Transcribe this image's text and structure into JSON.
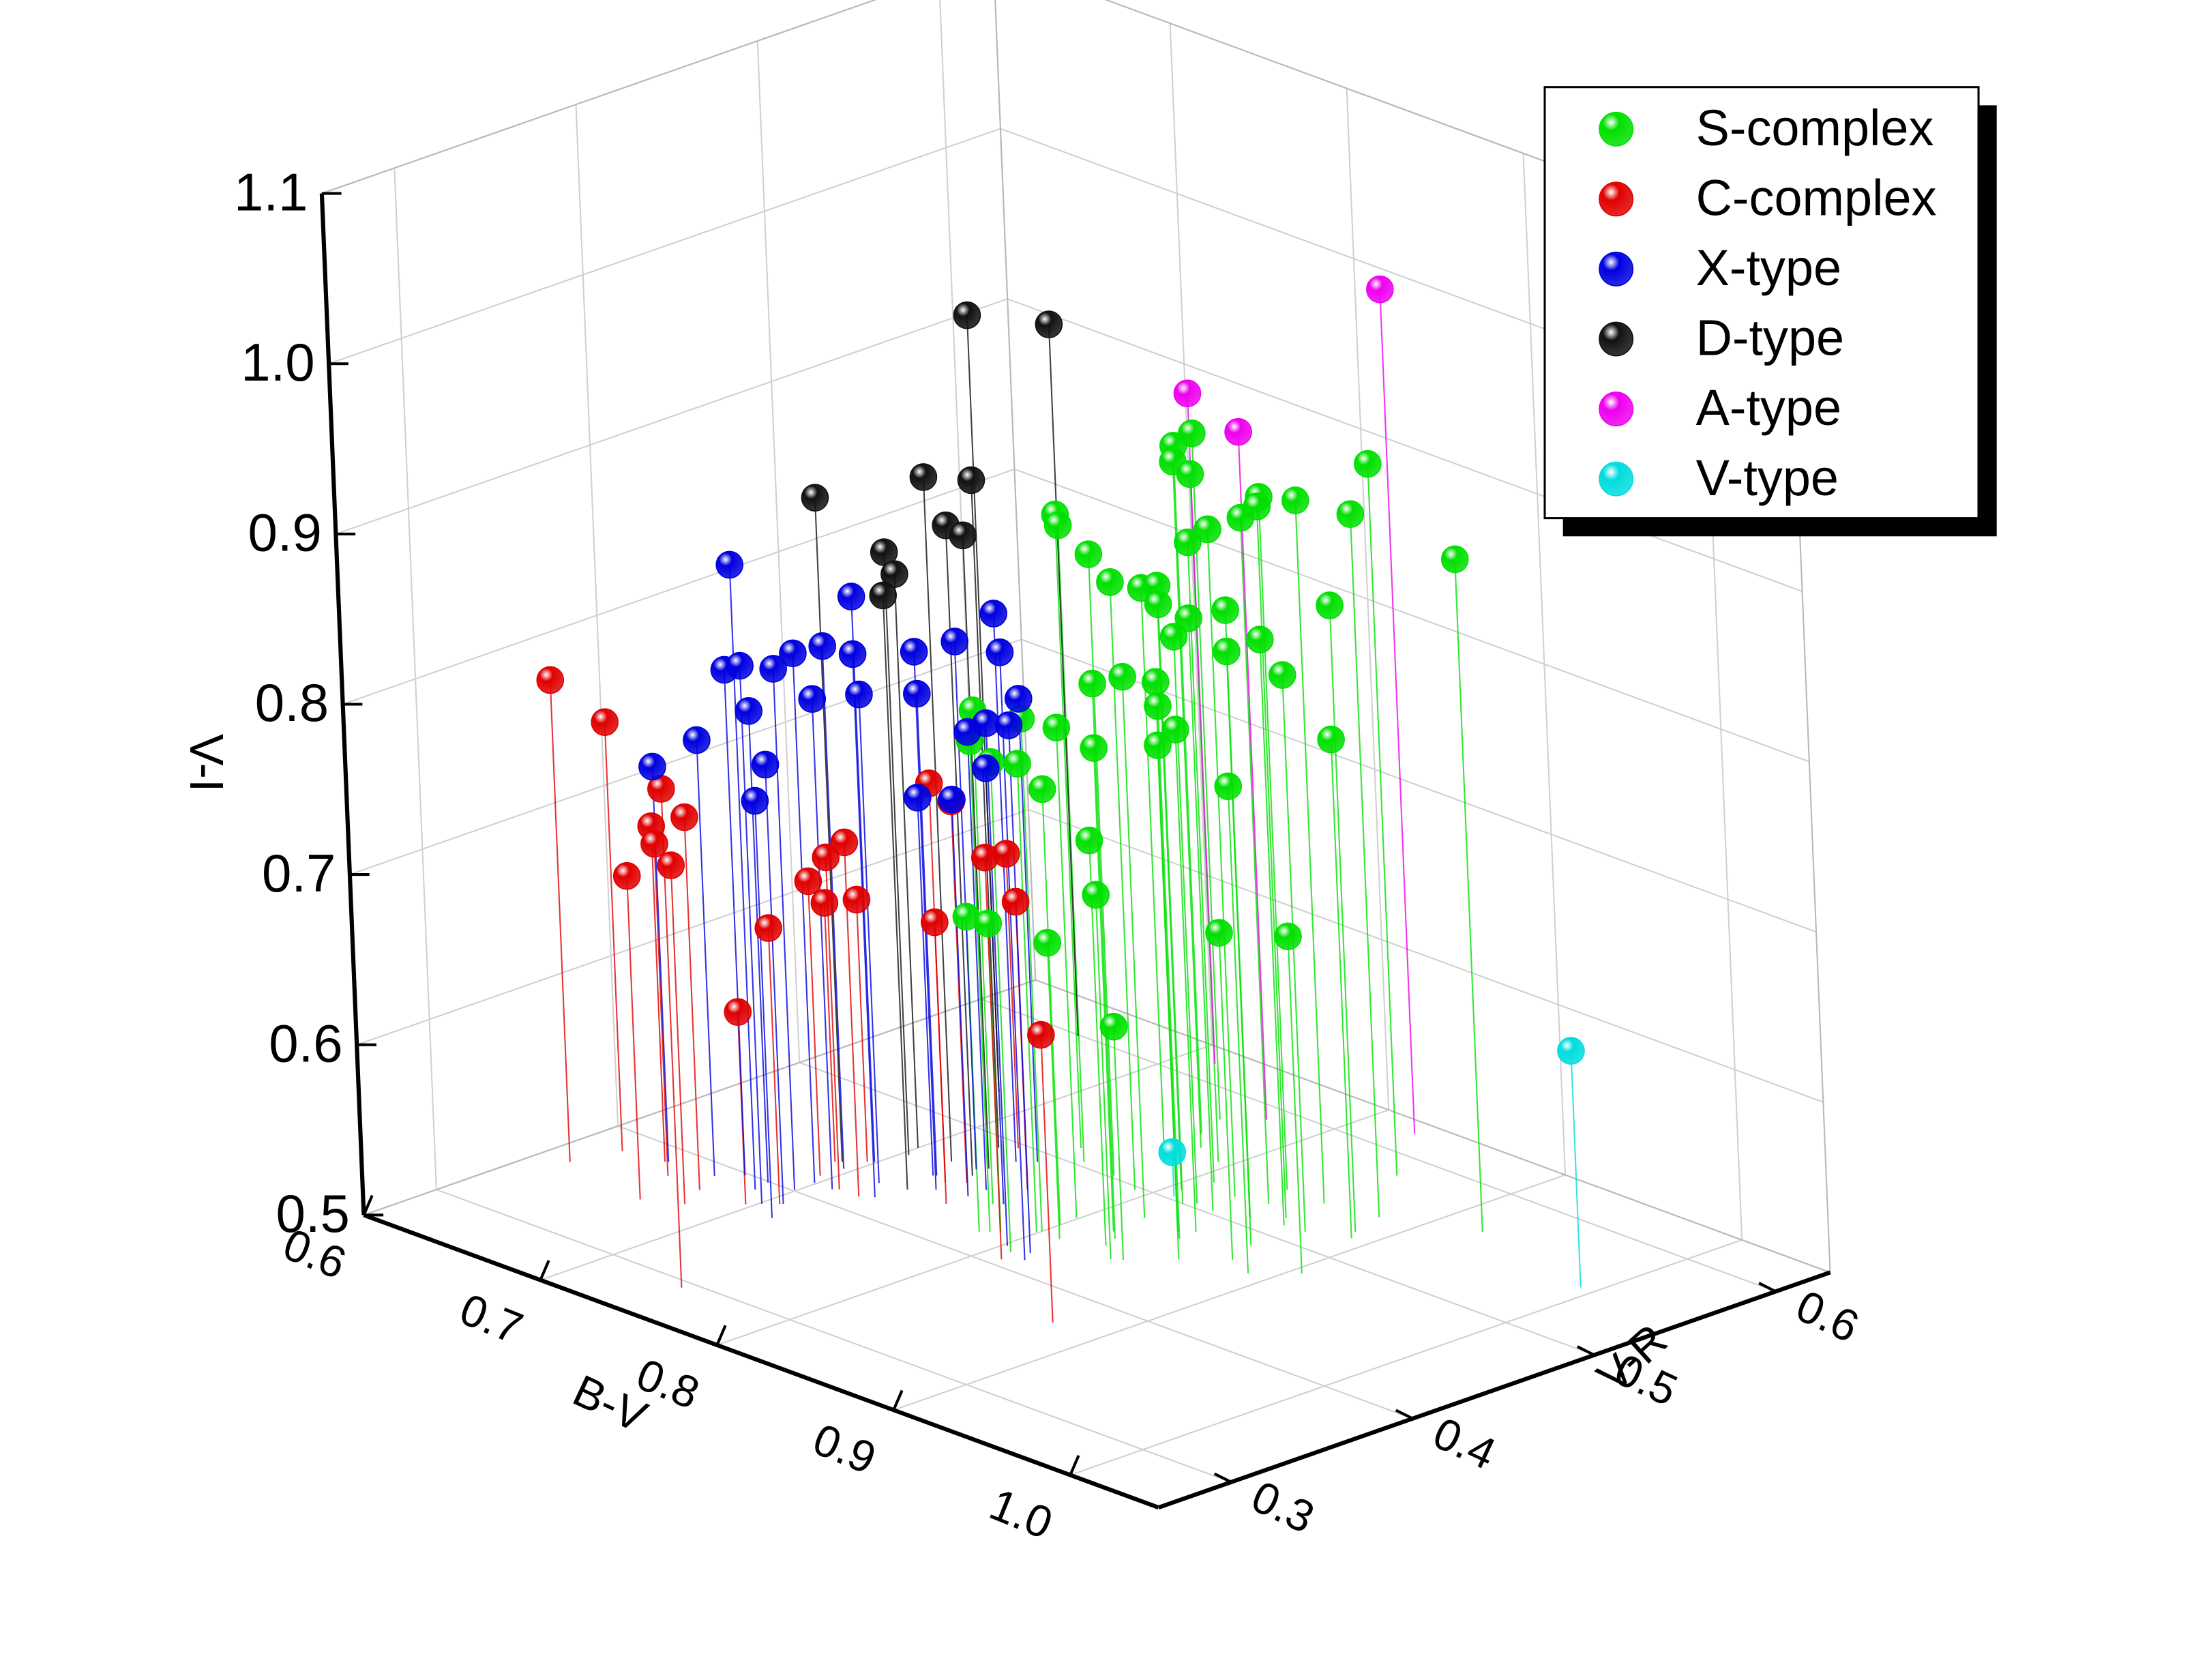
{
  "chart_data": {
    "type": "scatter3d",
    "xlabel": "B-V",
    "ylabel": "V-R",
    "zlabel": "V-I",
    "xlim": [
      0.6,
      1.05
    ],
    "ylim": [
      0.26,
      0.63
    ],
    "zlim": [
      0.5,
      1.1
    ],
    "xticks": [
      0.6,
      0.7,
      0.8,
      0.9,
      {
        "value": 1,
        "label": "1.0"
      }
    ],
    "yticks": [
      0.3,
      0.4,
      0.5,
      0.6
    ],
    "zticks": [
      0.5,
      0.6,
      0.7,
      0.8,
      0.9,
      {
        "value": 1,
        "label": "1.0"
      },
      1.1
    ],
    "grid": true,
    "legend": "upper right",
    "series": [
      {
        "name": "S-complex",
        "color": "#00e000",
        "x": [
          0.745,
          0.757,
          0.776,
          0.793,
          0.779,
          0.806,
          0.817,
          0.767,
          0.761,
          0.778,
          0.794,
          0.809,
          0.826,
          0.841,
          0.835,
          0.857,
          0.856,
          0.882,
          0.854,
          0.922,
          0.887,
          0.847,
          0.831,
          0.821,
          0.862,
          0.869,
          0.873,
          0.818,
          0.838,
          0.826,
          0.844,
          0.843,
          0.86,
          0.891,
          0.799,
          0.82,
          0.8,
          0.765,
          0.786,
          0.808,
          0.799,
          0.8,
          0.89,
          0.829,
          0.841,
          0.783,
          0.789,
          0.811,
          0.875,
          0.905,
          0.845
        ],
        "y": [
          0.514,
          0.504,
          0.502,
          0.497,
          0.527,
          0.51,
          0.5,
          0.559,
          0.575,
          0.548,
          0.542,
          0.525,
          0.52,
          0.524,
          0.54,
          0.518,
          0.54,
          0.545,
          0.582,
          0.563,
          0.527,
          0.508,
          0.503,
          0.504,
          0.512,
          0.487,
          0.513,
          0.478,
          0.477,
          0.454,
          0.472,
          0.482,
          0.456,
          0.521,
          0.459,
          0.459,
          0.439,
          0.446,
          0.424,
          0.414,
          0.437,
          0.449,
          0.465,
          0.446,
          0.437,
          0.421,
          0.427,
          0.438,
          0.471,
          0.48,
          0.44
        ],
        "z": [
          0.872,
          0.874,
          0.865,
          0.857,
          0.837,
          0.855,
          0.852,
          0.904,
          0.903,
          0.903,
          0.904,
          0.876,
          0.892,
          0.903,
          0.907,
          0.918,
          0.913,
          0.913,
          0.918,
          0.895,
          0.868,
          0.857,
          0.848,
          0.833,
          0.844,
          0.849,
          0.827,
          0.818,
          0.823,
          0.826,
          0.813,
          0.795,
          0.802,
          0.793,
          0.788,
          0.784,
          0.801,
          0.79,
          0.788,
          0.788,
          0.775,
          0.756,
          0.786,
          0.738,
          0.714,
          0.685,
          0.681,
          0.674,
          0.692,
          0.698,
          0.637
        ]
      },
      {
        "name": "C-complex",
        "color": "#e00000",
        "x": [
          0.615,
          0.621,
          0.745,
          0.641,
          0.653,
          0.664,
          0.673,
          0.68,
          0.697,
          0.706,
          0.695,
          0.688,
          0.711,
          0.722,
          0.697,
          0.752,
          0.741,
          0.735,
          0.811,
          0.728,
          0.763,
          0.875
        ],
        "y": [
          0.359,
          0.382,
          0.294,
          0.386,
          0.376,
          0.35,
          0.374,
          0.359,
          0.376,
          0.386,
          0.419,
          0.434,
          0.414,
          0.414,
          0.443,
          0.433,
          0.455,
          0.449,
          0.406,
          0.496,
          0.467,
          0.372
        ],
        "z": [
          0.783,
          0.752,
          0.793,
          0.697,
          0.695,
          0.69,
          0.719,
          0.699,
          0.613,
          0.662,
          0.673,
          0.652,
          0.695,
          0.708,
          0.654,
          0.747,
          0.724,
          0.653,
          0.736,
          0.673,
          0.669,
          0.669
        ]
      },
      {
        "name": "X-type",
        "color": "#0000e0",
        "x": [
          0.688,
          0.642,
          0.666,
          0.674,
          0.701,
          0.699,
          0.699,
          0.696,
          0.699,
          0.727,
          0.738,
          0.733,
          0.738,
          0.818,
          0.686,
          0.707,
          0.715,
          0.709,
          0.717,
          0.727,
          0.726,
          0.752,
          0.752,
          0.802,
          0.744,
          0.814,
          0.768
        ],
        "y": [
          0.39,
          0.387,
          0.389,
          0.398,
          0.381,
          0.401,
          0.412,
          0.431,
          0.445,
          0.418,
          0.441,
          0.468,
          0.485,
          0.412,
          0.399,
          0.387,
          0.373,
          0.412,
          0.43,
          0.452,
          0.451,
          0.445,
          0.455,
          0.418,
          0.491,
          0.419,
          0.449
        ],
        "z": [
          0.867,
          0.732,
          0.756,
          0.797,
          0.816,
          0.806,
          0.811,
          0.807,
          0.832,
          0.819,
          0.816,
          0.81,
          0.822,
          0.857,
          0.777,
          0.758,
          0.745,
          0.788,
          0.787,
          0.783,
          0.722,
          0.733,
          0.769,
          0.807,
          0.772,
          0.81,
          0.756
        ]
      },
      {
        "name": "D-type",
        "color": "#111111",
        "x": [
          0.69,
          0.703,
          0.7,
          0.73,
          0.72,
          0.737,
          0.736,
          0.678,
          0.722,
          0.656
        ],
        "y": [
          0.436,
          0.46,
          0.468,
          0.433,
          0.467,
          0.462,
          0.472,
          0.534,
          0.491,
          0.599
        ],
        "z": [
          0.89,
          0.854,
          0.837,
          0.849,
          0.902,
          0.882,
          0.872,
          0.956,
          0.892,
          0.918
        ]
      },
      {
        "name": "A-type",
        "color": "#ee00ee",
        "x": [
          0.716,
          0.774,
          0.826
        ],
        "y": [
          0.616,
          0.588,
          0.619
        ],
        "z": [
          0.894,
          0.904,
          0.996
        ]
      },
      {
        "name": "V-type",
        "color": "#00dddd",
        "x": [
          0.809,
          0.993
        ],
        "y": [
          0.503,
          0.548
        ],
        "z": [
          0.526,
          0.639
        ]
      }
    ]
  }
}
